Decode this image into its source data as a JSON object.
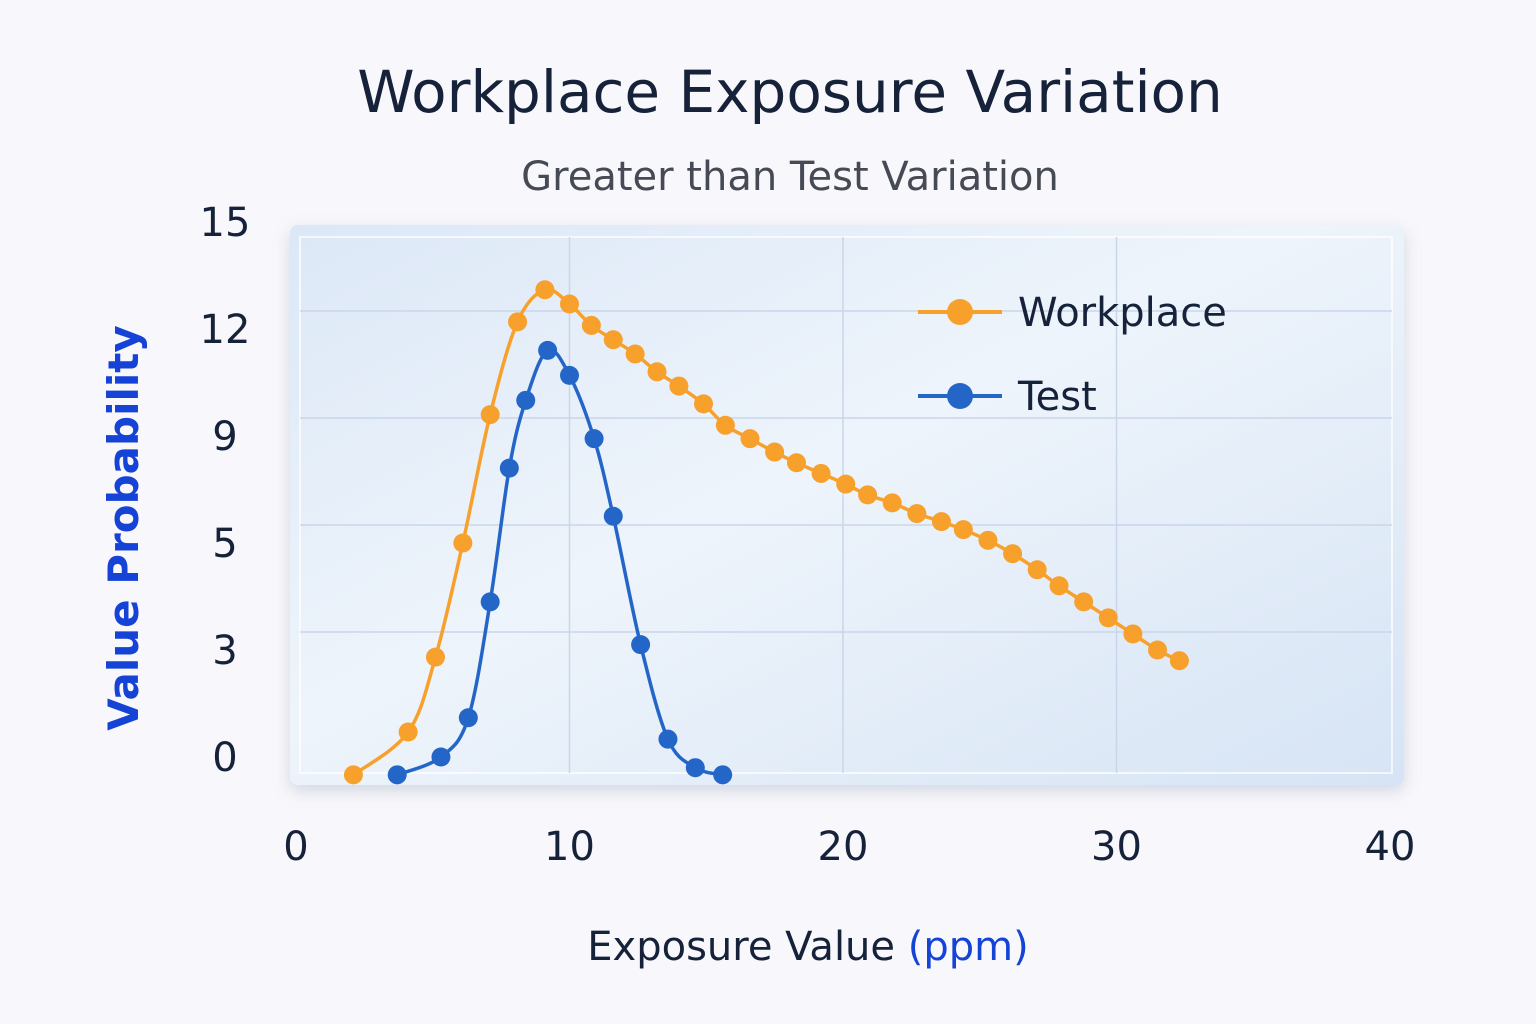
{
  "chart_data": {
    "type": "line",
    "title": "Workplace Exposure Variation",
    "subtitle": "Greater than Test Variation",
    "xlabel": "Exposure Value",
    "xlabel_unit": "(ppm)",
    "ylabel": "Value Probability",
    "x_ticks": [
      0,
      10,
      20,
      30,
      40
    ],
    "y_ticks": [
      0,
      3,
      5,
      9,
      12,
      15
    ],
    "xlim": [
      0,
      40
    ],
    "grid": true,
    "legend_position": "top-right",
    "series": [
      {
        "name": "Workplace",
        "color": "#f7a02c",
        "points": [
          [
            2.1,
            -0.5
          ],
          [
            4.1,
            0.7
          ],
          [
            5.1,
            2.8
          ],
          [
            6.1,
            5.0
          ],
          [
            7.1,
            9.6
          ],
          [
            8.1,
            12.2
          ],
          [
            9.1,
            13.1
          ],
          [
            10.0,
            12.7
          ],
          [
            10.8,
            12.1
          ],
          [
            11.6,
            11.7
          ],
          [
            12.4,
            11.3
          ],
          [
            13.2,
            10.8
          ],
          [
            14.0,
            10.4
          ],
          [
            14.9,
            9.9
          ],
          [
            15.7,
            9.3
          ],
          [
            16.6,
            8.9
          ],
          [
            17.5,
            8.4
          ],
          [
            18.3,
            8.0
          ],
          [
            19.2,
            7.6
          ],
          [
            20.1,
            7.2
          ],
          [
            20.9,
            6.8
          ],
          [
            21.8,
            6.5
          ],
          [
            22.7,
            6.1
          ],
          [
            23.6,
            5.8
          ],
          [
            24.4,
            5.5
          ],
          [
            25.3,
            5.1
          ],
          [
            26.2,
            4.8
          ],
          [
            27.1,
            4.5
          ],
          [
            27.9,
            4.2
          ],
          [
            28.8,
            3.9
          ],
          [
            29.7,
            3.6
          ],
          [
            30.6,
            3.3
          ],
          [
            31.5,
            3.0
          ],
          [
            32.3,
            2.7
          ]
        ]
      },
      {
        "name": "Test",
        "color": "#2466c8",
        "points": [
          [
            3.7,
            -0.5
          ],
          [
            5.3,
            0.0
          ],
          [
            6.3,
            1.1
          ],
          [
            7.1,
            3.9
          ],
          [
            7.8,
            7.8
          ],
          [
            8.4,
            10.0
          ],
          [
            9.2,
            11.4
          ],
          [
            10.0,
            10.7
          ],
          [
            10.9,
            8.9
          ],
          [
            11.6,
            6.0
          ],
          [
            12.6,
            3.1
          ],
          [
            13.6,
            0.5
          ],
          [
            14.6,
            -0.3
          ],
          [
            15.6,
            -0.5
          ]
        ]
      }
    ]
  }
}
